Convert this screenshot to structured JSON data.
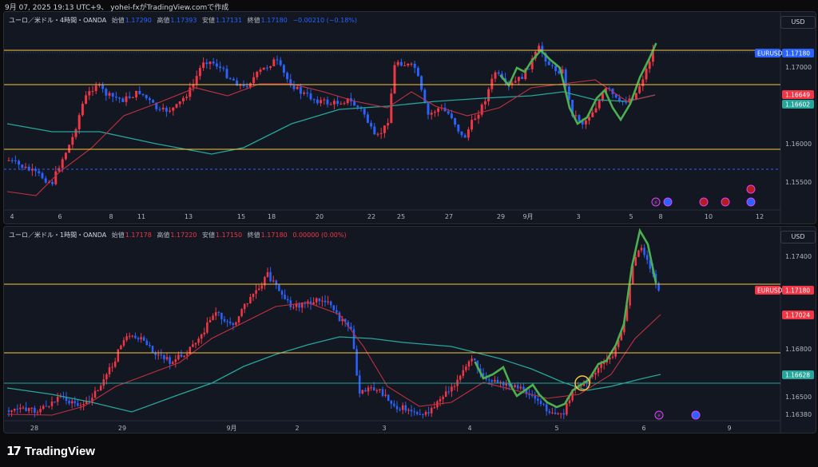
{
  "header": {
    "title": "9月 07, 2025 19:13 UTC+9、 yohei-fxがTradingView.comで作成"
  },
  "brand": {
    "logo_mark": "17",
    "name": "TradingView"
  },
  "colors": {
    "up": "#f23645",
    "down": "#2962ff",
    "ma_fast": "#f23645",
    "ma_slow": "#26a69a",
    "line_green": "#4caf50",
    "level": "#f9c440",
    "bg": "#131722"
  },
  "top_chart": {
    "symbol_label": "ユーロ／米ドル・4時間・OANDA",
    "open_label": "始値",
    "open": "1.17290",
    "high_label": "高値",
    "high": "1.17393",
    "low_label": "安値",
    "low": "1.17131",
    "close_label": "終値",
    "close": "1.17180",
    "change": "−0.00210 (−0.18%)",
    "currency": "USD",
    "price_ticks": [
      "1.17000",
      "1.16000",
      "1.15500"
    ],
    "pair_tag": "EURUSD",
    "price_tags": [
      {
        "text": "1.17180",
        "color": "#2962ff"
      },
      {
        "text": "1.16649",
        "color": "#f23645"
      },
      {
        "text": "1.16602",
        "color": "#26a69a"
      }
    ],
    "time_ticks": [
      "4",
      "6",
      "8",
      "11",
      "13",
      "15",
      "18",
      "20",
      "22",
      "25",
      "27",
      "29",
      "9月",
      "3",
      "5",
      "8",
      "10",
      "12"
    ],
    "icons": [
      "lightning-event-icon",
      "globe-event-icon",
      "us-flag-event-icon",
      "us-flag-event-icon",
      "us-flag-event-icon",
      "globe-event-icon"
    ]
  },
  "bottom_chart": {
    "symbol_label": "ユーロ／米ドル・1時間・OANDA",
    "open_label": "始値",
    "open": "1.17178",
    "high_label": "高値",
    "high": "1.17220",
    "low_label": "安値",
    "low": "1.17150",
    "close_label": "終値",
    "close": "1.17180",
    "change": "0.00000 (0.00%)",
    "currency": "USD",
    "price_ticks": [
      "1.17400",
      "1.16800",
      "1.16500",
      "1.16380"
    ],
    "pair_tag": "EURUSD",
    "price_tags": [
      {
        "text": "1.17180",
        "color": "#f23645"
      },
      {
        "text": "1.17024",
        "color": "#f23645"
      },
      {
        "text": "1.16628",
        "color": "#26a69a"
      }
    ],
    "time_ticks": [
      "28",
      "29",
      "9月",
      "2",
      "3",
      "4",
      "5",
      "6",
      "9"
    ],
    "icons": [
      "lightning-event-icon",
      "globe-event-icon"
    ]
  }
}
